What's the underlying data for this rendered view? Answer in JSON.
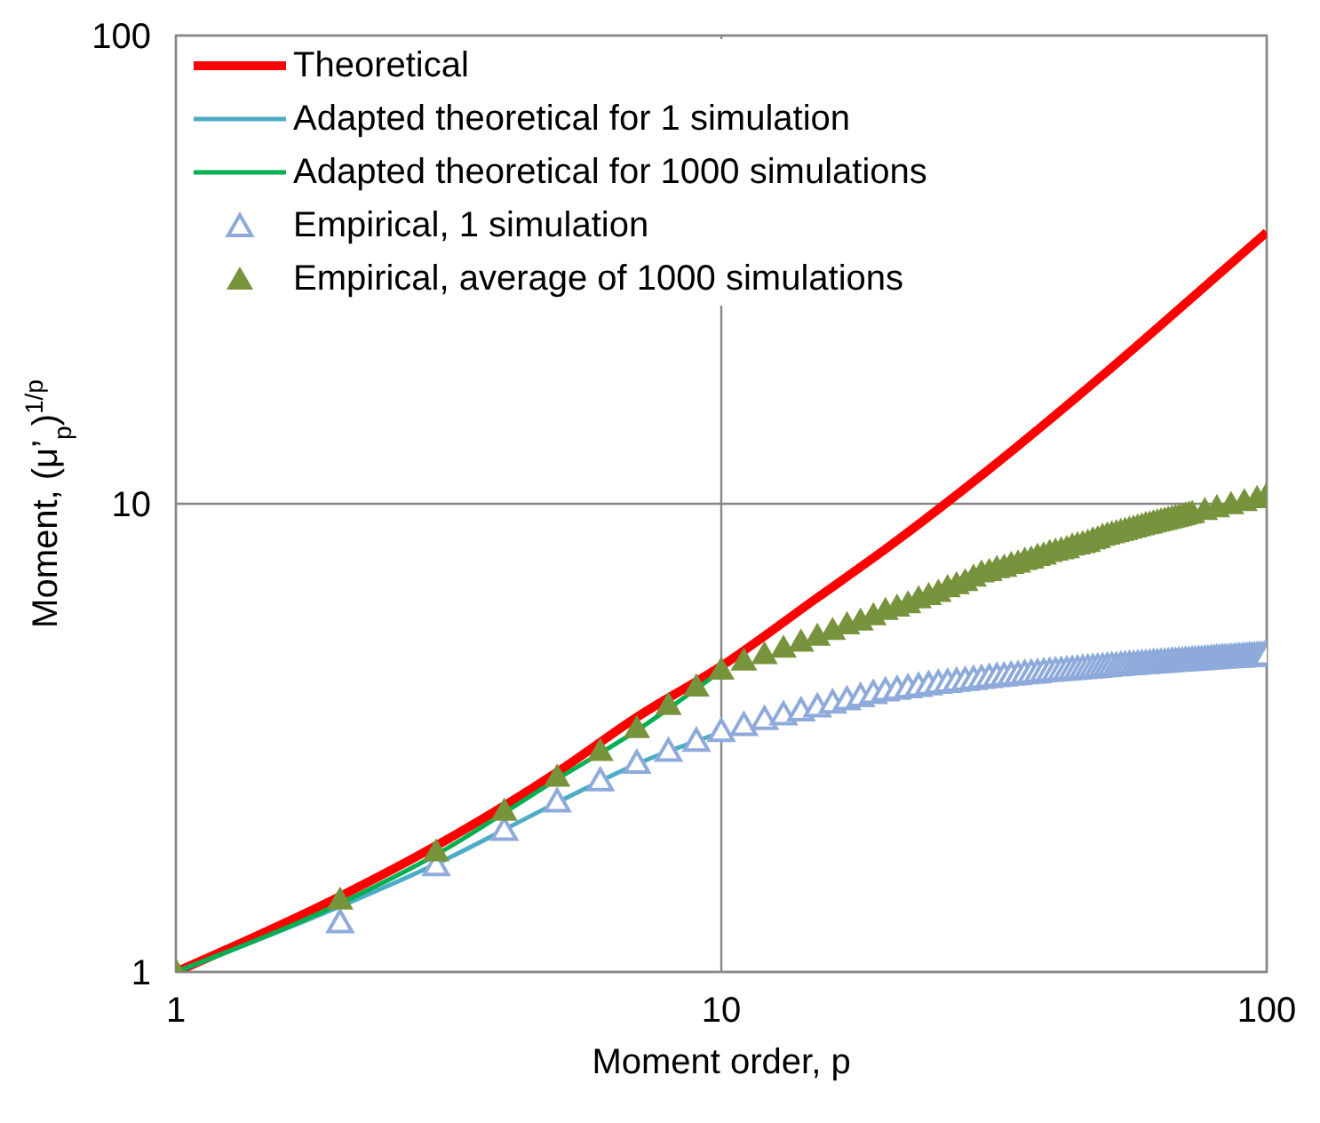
{
  "chart_data": {
    "type": "line",
    "xlabel": "Moment order, p",
    "ylabel": "Moment, (μ’$_{p}$)$^{1/p}$",
    "log": "xy",
    "xlim": [
      1,
      100
    ],
    "ylim": [
      1,
      100
    ],
    "xticks": [
      1,
      10,
      100
    ],
    "yticks": [
      1,
      10,
      100
    ],
    "grid": true,
    "legend": "top left",
    "series": [
      {
        "name": "Theoretical",
        "color": "#ff0000",
        "x": [
          1,
          2,
          3,
          5,
          7,
          10,
          15,
          20,
          30,
          50,
          70,
          100
        ],
        "values": [
          1,
          1.45,
          1.86,
          2.67,
          3.5,
          4.5,
          6.3,
          8.0,
          11.5,
          18.8,
          26.4,
          38
        ]
      },
      {
        "name": "Adapted theoretical for 1 simulation",
        "color": "#4bacc6",
        "x": [
          1,
          2,
          3,
          5,
          7,
          10
        ],
        "values": [
          1,
          1.38,
          1.7,
          2.3,
          2.78,
          3.25
        ]
      },
      {
        "name": "Adapted theoretical for 1000 simulations",
        "color": "#00b050",
        "x": [
          1,
          2,
          3,
          5,
          7,
          10
        ],
        "values": [
          1,
          1.4,
          1.78,
          2.58,
          3.28,
          4.4
        ]
      },
      {
        "name": "Empirical, 1 simulation",
        "type": "scatter",
        "marker": "triangle",
        "color": "#8eaadb",
        "x": [
          2,
          3,
          4,
          5,
          6,
          7,
          8,
          9,
          10,
          11,
          12,
          13,
          14,
          15,
          16,
          17,
          18,
          19,
          20,
          21,
          22,
          23,
          24,
          25,
          26,
          27,
          28,
          29,
          30,
          31,
          32,
          33,
          34,
          35,
          36,
          37,
          38,
          39,
          40,
          41,
          42,
          43,
          44,
          45,
          46,
          47,
          48,
          49,
          50,
          51,
          52,
          53,
          54,
          55,
          56,
          57,
          58,
          59,
          60,
          61,
          62,
          63,
          64,
          65,
          66,
          67,
          68,
          69,
          70,
          71,
          72,
          73,
          74,
          75,
          76,
          77,
          78,
          79,
          80,
          81,
          82,
          83,
          84,
          85,
          86,
          87,
          88,
          89,
          90,
          91,
          92,
          93,
          94,
          95,
          96,
          97,
          98,
          99,
          100
        ],
        "values": [
          1.27,
          1.68,
          2.0,
          2.3,
          2.55,
          2.78,
          2.95,
          3.1,
          3.25,
          3.35,
          3.45,
          3.53,
          3.6,
          3.67,
          3.74,
          3.8,
          3.86,
          3.92,
          3.97,
          4.0,
          4.03,
          4.06,
          4.09,
          4.12,
          4.14,
          4.16,
          4.18,
          4.2,
          4.22,
          4.24,
          4.26,
          4.27,
          4.29,
          4.3,
          4.32,
          4.33,
          4.34,
          4.36,
          4.37,
          4.38,
          4.39,
          4.4,
          4.41,
          4.42,
          4.43,
          4.44,
          4.45,
          4.46,
          4.47,
          4.48,
          4.49,
          4.49,
          4.5,
          4.51,
          4.52,
          4.52,
          4.53,
          4.54,
          4.54,
          4.55,
          4.56,
          4.56,
          4.57,
          4.57,
          4.58,
          4.59,
          4.59,
          4.6,
          4.6,
          4.61,
          4.61,
          4.62,
          4.62,
          4.63,
          4.63,
          4.64,
          4.64,
          4.65,
          4.65,
          4.66,
          4.66,
          4.67,
          4.67,
          4.67,
          4.68,
          4.68,
          4.69,
          4.69,
          4.69,
          4.7,
          4.7,
          4.71,
          4.71,
          4.71,
          4.72,
          4.72,
          4.72,
          4.73,
          4.73
        ]
      },
      {
        "name": "Empirical, average of 1000 simulations",
        "type": "scatter",
        "marker": "triangle",
        "color": "#77933c",
        "x": [
          1,
          2,
          3,
          4,
          5,
          6,
          7,
          8,
          9,
          10,
          11,
          12,
          13,
          14,
          15,
          16,
          17,
          18,
          19,
          20,
          21,
          22,
          23,
          24,
          25,
          26,
          27,
          28,
          29,
          30,
          31,
          32,
          33,
          34,
          35,
          36,
          37,
          38,
          39,
          40,
          41,
          42,
          43,
          44,
          45,
          46,
          47,
          48,
          49,
          50,
          51,
          52,
          53,
          54,
          55,
          56,
          57,
          58,
          59,
          60,
          61,
          62,
          63,
          64,
          65,
          66,
          67,
          68,
          69,
          70,
          71,
          72,
          73,
          74,
          75,
          76,
          77,
          78,
          79,
          80,
          81,
          82,
          83,
          84,
          85,
          86,
          87,
          88,
          89,
          90,
          91,
          92,
          93,
          94,
          95,
          96,
          97,
          98,
          99,
          100
        ],
        "values": [
          1.0,
          1.42,
          1.8,
          2.2,
          2.6,
          2.95,
          3.3,
          3.7,
          4.05,
          4.4,
          4.6,
          4.75,
          4.9,
          5.05,
          5.2,
          5.35,
          5.5,
          5.6,
          5.75,
          5.9,
          6.0,
          6.1,
          6.25,
          6.35,
          6.45,
          6.6,
          6.7,
          6.8,
          6.95,
          7.1,
          7.15,
          7.25,
          7.3,
          7.4,
          7.45,
          7.55,
          7.6,
          7.7,
          7.75,
          7.85,
          7.9,
          7.95,
          8.0,
          8.1,
          8.15,
          8.2,
          8.25,
          8.35,
          8.4,
          8.5,
          8.55,
          8.6,
          8.65,
          8.7,
          8.75,
          8.8,
          8.85,
          8.9,
          8.95,
          9.0,
          9.03,
          9.08,
          9.12,
          9.16,
          9.2,
          9.24,
          9.28,
          9.32,
          9.36,
          9.4,
          9.44,
          9.48,
          9.51,
          null,
          null,
          null,
          9.65,
          null,
          null,
          null,
          9.78,
          null,
          null,
          null,
          null,
          9.93,
          null,
          null,
          null,
          null,
          10.08,
          null,
          null,
          null,
          null,
          10.23,
          null,
          null,
          null,
          10.4
        ]
      }
    ]
  }
}
